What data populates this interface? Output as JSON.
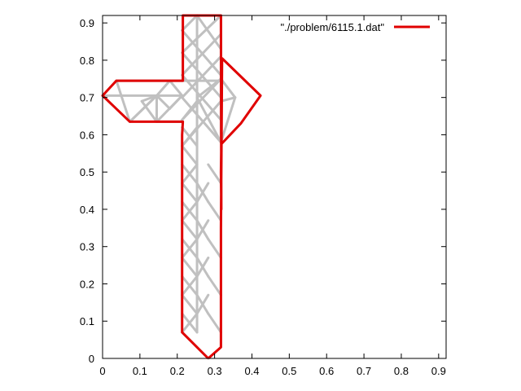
{
  "chart_data": {
    "type": "line",
    "title": "",
    "xlabel": "",
    "ylabel": "",
    "xlim": [
      0,
      0.92
    ],
    "ylim": [
      0,
      0.92
    ],
    "xticks": [
      "0",
      "0.1",
      "0.2",
      "0.3",
      "0.4",
      "0.5",
      "0.6",
      "0.7",
      "0.8",
      "0.9"
    ],
    "yticks": [
      "0",
      "0.1",
      "0.2",
      "0.3",
      "0.4",
      "0.5",
      "0.6",
      "0.7",
      "0.8",
      "0.9"
    ],
    "grid": false,
    "legend": {
      "position": "top-right",
      "label": "\"./problem/6115.1.dat\""
    },
    "colors": {
      "series": "#e00000",
      "mesh": "#c0c0c0"
    },
    "series": [
      {
        "name": "\"./problem/6115.1.dat\"",
        "x": [
          0.283,
          0.317,
          0.317,
          0.317,
          0.32,
          0.423,
          0.37,
          0.318,
          0.317,
          0.318,
          0.317,
          0.285,
          0.215,
          0.215,
          0.215,
          0.037,
          0.0,
          0.073,
          0.215,
          0.213,
          0.213,
          0.213,
          0.213,
          0.213,
          0.213,
          0.213,
          0.213,
          0.283
        ],
        "y": [
          0.0,
          0.03,
          0.12,
          0.35,
          0.805,
          0.705,
          0.63,
          0.575,
          0.5,
          0.4,
          0.92,
          0.92,
          0.92,
          0.87,
          0.745,
          0.745,
          0.705,
          0.635,
          0.635,
          0.6,
          0.5,
          0.4,
          0.3,
          0.35,
          0.2,
          0.1,
          0.07,
          0.0
        ]
      }
    ],
    "mesh_segments": [
      [
        0.213,
        0.07,
        0.283,
        0.0
      ],
      [
        0.213,
        0.07,
        0.253,
        0.12
      ],
      [
        0.253,
        0.12,
        0.213,
        0.17
      ],
      [
        0.213,
        0.17,
        0.253,
        0.22
      ],
      [
        0.253,
        0.22,
        0.213,
        0.27
      ],
      [
        0.213,
        0.27,
        0.253,
        0.32
      ],
      [
        0.253,
        0.32,
        0.213,
        0.37
      ],
      [
        0.213,
        0.37,
        0.253,
        0.42
      ],
      [
        0.253,
        0.42,
        0.213,
        0.47
      ],
      [
        0.213,
        0.47,
        0.253,
        0.52
      ],
      [
        0.253,
        0.52,
        0.213,
        0.57
      ],
      [
        0.213,
        0.57,
        0.253,
        0.62
      ],
      [
        0.213,
        0.12,
        0.253,
        0.07
      ],
      [
        0.213,
        0.22,
        0.253,
        0.17
      ],
      [
        0.213,
        0.32,
        0.253,
        0.27
      ],
      [
        0.213,
        0.42,
        0.253,
        0.37
      ],
      [
        0.213,
        0.52,
        0.253,
        0.47
      ],
      [
        0.213,
        0.62,
        0.253,
        0.57
      ],
      [
        0.253,
        0.07,
        0.253,
        0.92
      ],
      [
        0.253,
        0.17,
        0.283,
        0.12
      ],
      [
        0.253,
        0.12,
        0.283,
        0.17
      ],
      [
        0.253,
        0.27,
        0.283,
        0.22
      ],
      [
        0.253,
        0.22,
        0.283,
        0.27
      ],
      [
        0.253,
        0.37,
        0.283,
        0.32
      ],
      [
        0.253,
        0.32,
        0.283,
        0.37
      ],
      [
        0.253,
        0.47,
        0.283,
        0.42
      ],
      [
        0.253,
        0.42,
        0.283,
        0.47
      ],
      [
        0.283,
        0.12,
        0.317,
        0.07
      ],
      [
        0.283,
        0.22,
        0.317,
        0.17
      ],
      [
        0.283,
        0.32,
        0.317,
        0.27
      ],
      [
        0.283,
        0.42,
        0.317,
        0.37
      ],
      [
        0.283,
        0.52,
        0.317,
        0.47
      ],
      [
        0.213,
        0.57,
        0.317,
        0.69
      ],
      [
        0.213,
        0.64,
        0.317,
        0.75
      ],
      [
        0.213,
        0.7,
        0.317,
        0.81
      ],
      [
        0.213,
        0.76,
        0.317,
        0.87
      ],
      [
        0.213,
        0.82,
        0.317,
        0.92
      ],
      [
        0.213,
        0.88,
        0.253,
        0.92
      ],
      [
        0.213,
        0.7,
        0.317,
        0.58
      ],
      [
        0.213,
        0.76,
        0.317,
        0.64
      ],
      [
        0.213,
        0.82,
        0.317,
        0.7
      ],
      [
        0.213,
        0.88,
        0.317,
        0.76
      ],
      [
        0.253,
        0.92,
        0.317,
        0.83
      ],
      [
        0.213,
        0.64,
        0.253,
        0.69
      ],
      [
        0.317,
        0.58,
        0.317,
        0.92
      ],
      [
        0.317,
        0.58,
        0.355,
        0.7
      ],
      [
        0.355,
        0.7,
        0.317,
        0.75
      ],
      [
        0.317,
        0.58,
        0.253,
        0.7
      ],
      [
        0.253,
        0.7,
        0.317,
        0.75
      ],
      [
        0.317,
        0.69,
        0.355,
        0.7
      ],
      [
        0.037,
        0.745,
        0.213,
        0.745
      ],
      [
        0.213,
        0.745,
        0.317,
        0.745
      ],
      [
        0.0,
        0.705,
        0.213,
        0.705
      ],
      [
        0.073,
        0.635,
        0.037,
        0.745
      ],
      [
        0.073,
        0.635,
        0.145,
        0.705
      ],
      [
        0.145,
        0.705,
        0.073,
        0.635
      ],
      [
        0.105,
        0.69,
        0.145,
        0.635
      ],
      [
        0.145,
        0.635,
        0.213,
        0.705
      ],
      [
        0.105,
        0.69,
        0.145,
        0.705
      ],
      [
        0.145,
        0.705,
        0.18,
        0.67
      ],
      [
        0.18,
        0.67,
        0.213,
        0.705
      ],
      [
        0.145,
        0.705,
        0.18,
        0.745
      ],
      [
        0.18,
        0.745,
        0.213,
        0.705
      ],
      [
        0.145,
        0.705,
        0.145,
        0.635
      ],
      [
        0.145,
        0.635,
        0.213,
        0.635
      ]
    ]
  }
}
